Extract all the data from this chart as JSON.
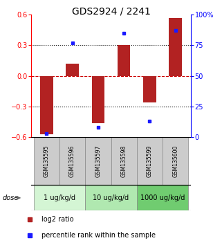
{
  "title": "GDS2924 / 2241",
  "samples": [
    "GSM135595",
    "GSM135596",
    "GSM135597",
    "GSM135598",
    "GSM135599",
    "GSM135600"
  ],
  "log2_ratio": [
    -0.57,
    0.12,
    -0.46,
    0.3,
    -0.26,
    0.57
  ],
  "percentile": [
    3,
    77,
    8,
    85,
    13,
    87
  ],
  "ylim_left": [
    -0.6,
    0.6
  ],
  "ylim_right": [
    0,
    100
  ],
  "yticks_left": [
    -0.6,
    -0.3,
    0.0,
    0.3,
    0.6
  ],
  "yticks_right": [
    0,
    25,
    50,
    75,
    100
  ],
  "ytick_labels_right": [
    "0",
    "25",
    "50",
    "75",
    "100%"
  ],
  "bar_color": "#b22222",
  "dot_color": "#1a1aff",
  "dose_colors": [
    "#d4f5d4",
    "#b0e8b0",
    "#70cc70"
  ],
  "dose_labels": [
    "1 ug/kg/d",
    "10 ug/kg/d",
    "1000 ug/kg/d"
  ],
  "dose_label": "dose",
  "legend_red": "log2 ratio",
  "legend_blue": "percentile rank within the sample",
  "bar_width": 0.5,
  "title_fontsize": 10,
  "tick_fontsize": 7,
  "sample_fontsize": 5.5,
  "dose_fontsize": 7,
  "legend_fontsize": 7
}
